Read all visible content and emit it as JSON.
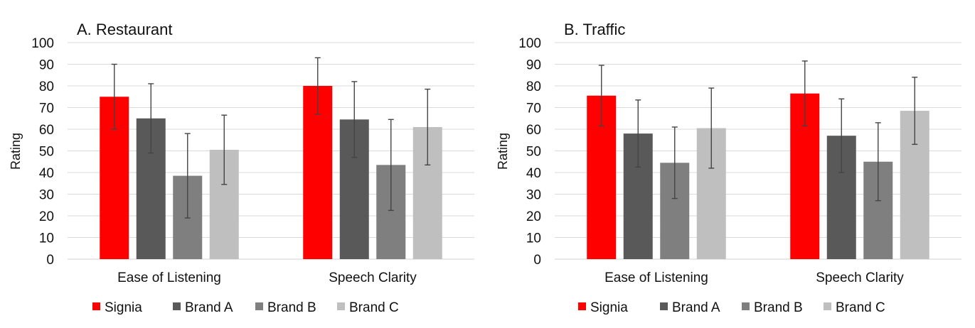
{
  "chart_data": [
    {
      "type": "bar",
      "title": "A. Restaurant",
      "ylabel": "Rating",
      "xlabel": "",
      "ylim": [
        0,
        100
      ],
      "yticks": [
        0,
        10,
        20,
        30,
        40,
        50,
        60,
        70,
        80,
        90,
        100
      ],
      "grid": true,
      "legend": "bottom",
      "categories": [
        "Ease of Listening",
        "Speech Clarity"
      ],
      "series": [
        {
          "name": "Signia",
          "color": "#ff0000",
          "values": [
            75,
            80
          ],
          "error": [
            15,
            13
          ]
        },
        {
          "name": "Brand A",
          "color": "#595959",
          "values": [
            65,
            64.5
          ],
          "error": [
            16,
            17.5
          ]
        },
        {
          "name": "Brand B",
          "color": "#7f7f7f",
          "values": [
            38.5,
            43.5
          ],
          "error": [
            19.5,
            21
          ]
        },
        {
          "name": "Brand C",
          "color": "#bfbfbf",
          "values": [
            50.5,
            61
          ],
          "error": [
            16,
            17.5
          ]
        }
      ]
    },
    {
      "type": "bar",
      "title": "B. Traffic",
      "ylabel": "Rating",
      "xlabel": "",
      "ylim": [
        0,
        100
      ],
      "yticks": [
        0,
        10,
        20,
        30,
        40,
        50,
        60,
        70,
        80,
        90,
        100
      ],
      "grid": true,
      "legend": "bottom",
      "categories": [
        "Ease of Listening",
        "Speech Clarity"
      ],
      "series": [
        {
          "name": "Signia",
          "color": "#ff0000",
          "values": [
            75.5,
            76.5
          ],
          "error": [
            14,
            15
          ]
        },
        {
          "name": "Brand A",
          "color": "#595959",
          "values": [
            58,
            57
          ],
          "error": [
            15.5,
            17
          ]
        },
        {
          "name": "Brand B",
          "color": "#7f7f7f",
          "values": [
            44.5,
            45
          ],
          "error": [
            16.5,
            18
          ]
        },
        {
          "name": "Brand C",
          "color": "#bfbfbf",
          "values": [
            60.5,
            68.5
          ],
          "error": [
            18.5,
            15.5
          ]
        }
      ]
    }
  ]
}
